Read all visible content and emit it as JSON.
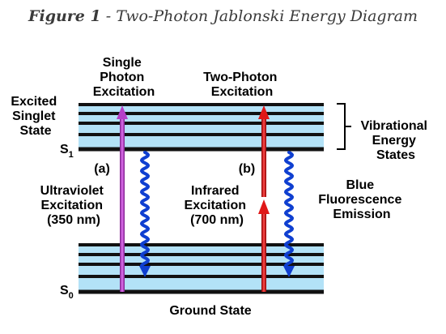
{
  "title": {
    "figure": "Figure 1",
    "separator": " - ",
    "text": "Two-Photon Jablonski Energy Diagram"
  },
  "labels": {
    "single_photon": [
      "Single",
      "Photon",
      "Excitation"
    ],
    "two_photon": [
      "Two-Photon",
      "Excitation"
    ],
    "excited_singlet": [
      "Excited",
      "Singlet",
      "State"
    ],
    "s1_main": "S",
    "s1_sub": "1",
    "s0_main": "S",
    "s0_sub": "0",
    "a": "(a)",
    "b": "(b)",
    "uv": [
      "Ultraviolet",
      "Excitation",
      "(350 nm)"
    ],
    "ir": [
      "Infrared",
      "Excitation",
      "(700 nm)"
    ],
    "fluorescence": [
      "Blue",
      "Fluorescence",
      "Emission"
    ],
    "vibrational": [
      "Vibrational",
      "Energy",
      "States"
    ],
    "ground": "Ground State"
  },
  "colors": {
    "band_fill": "#b3e2f7",
    "level_line": "#111111",
    "uv_arrow": "#cc44dd",
    "ir_arrow": "#dd1111",
    "fluorescence_wave": "#0f3fd0"
  }
}
